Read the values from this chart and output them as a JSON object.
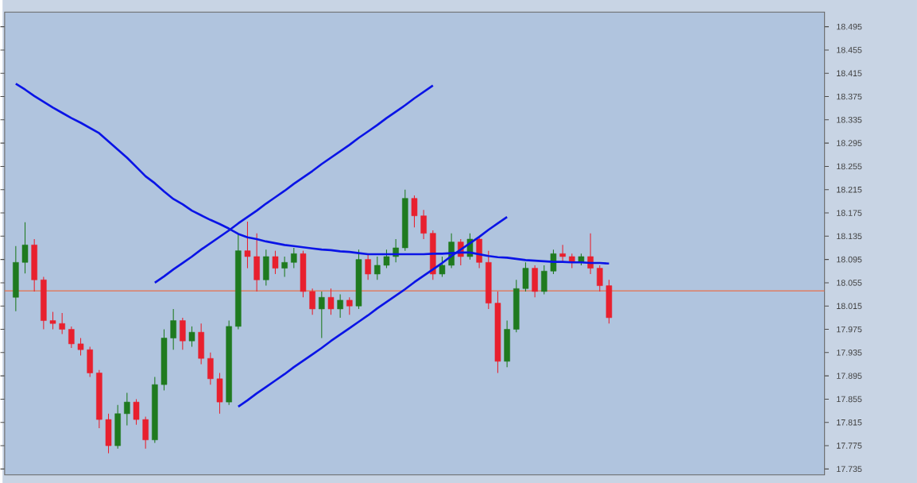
{
  "chart_data": {
    "type": "candlestick",
    "categories": [
      null,
      null,
      null,
      null,
      null,
      null,
      null,
      null,
      null,
      null,
      null,
      null,
      null,
      null,
      null,
      null,
      null,
      null,
      null,
      null,
      null,
      null,
      null,
      null,
      null,
      null,
      null,
      null,
      null,
      null,
      null,
      null,
      null,
      null,
      null,
      null,
      null,
      null,
      null,
      null,
      null,
      null,
      null,
      null,
      null,
      null,
      null,
      null,
      null,
      null,
      null,
      null,
      null,
      null,
      null,
      null,
      null,
      null,
      null,
      null,
      null,
      null,
      null,
      null,
      null
    ],
    "ohlc": [
      [
        18.03,
        18.118,
        18.006,
        18.09
      ],
      [
        18.09,
        18.159,
        18.071,
        18.12
      ],
      [
        18.12,
        18.13,
        18.04,
        18.06
      ],
      [
        18.06,
        18.065,
        17.975,
        17.99
      ],
      [
        17.99,
        18.005,
        17.975,
        17.985
      ],
      [
        17.985,
        18.003,
        17.967,
        17.975
      ],
      [
        17.975,
        17.98,
        17.943,
        17.95
      ],
      [
        17.95,
        17.96,
        17.93,
        17.94
      ],
      [
        17.94,
        17.945,
        17.893,
        17.9
      ],
      [
        17.9,
        17.905,
        17.805,
        17.82
      ],
      [
        17.82,
        17.83,
        17.762,
        17.775
      ],
      [
        17.775,
        17.845,
        17.77,
        17.83
      ],
      [
        17.83,
        17.866,
        17.81,
        17.85
      ],
      [
        17.85,
        17.855,
        17.811,
        17.82
      ],
      [
        17.82,
        17.825,
        17.77,
        17.785
      ],
      [
        17.785,
        17.893,
        17.78,
        17.88
      ],
      [
        17.88,
        17.975,
        17.87,
        17.96
      ],
      [
        17.96,
        18.01,
        17.94,
        17.99
      ],
      [
        17.99,
        17.995,
        17.94,
        17.955
      ],
      [
        17.955,
        17.98,
        17.945,
        17.97
      ],
      [
        17.97,
        17.985,
        17.915,
        17.925
      ],
      [
        17.925,
        17.935,
        17.88,
        17.89
      ],
      [
        17.89,
        17.9,
        17.83,
        17.85
      ],
      [
        17.85,
        17.99,
        17.845,
        17.98
      ],
      [
        17.98,
        18.14,
        17.975,
        18.11
      ],
      [
        18.11,
        18.16,
        18.08,
        18.1
      ],
      [
        18.1,
        18.14,
        18.04,
        18.06
      ],
      [
        18.06,
        18.112,
        18.05,
        18.1
      ],
      [
        18.1,
        18.11,
        18.07,
        18.08
      ],
      [
        18.08,
        18.1,
        18.065,
        18.09
      ],
      [
        18.09,
        18.115,
        18.08,
        18.105
      ],
      [
        18.105,
        18.11,
        18.03,
        18.04
      ],
      [
        18.04,
        18.045,
        18.0,
        18.01
      ],
      [
        18.01,
        18.04,
        17.96,
        18.03
      ],
      [
        18.03,
        18.045,
        18.0,
        18.01
      ],
      [
        18.01,
        18.035,
        17.995,
        18.025
      ],
      [
        18.025,
        18.03,
        18.0,
        18.015
      ],
      [
        18.015,
        18.112,
        18.01,
        18.095
      ],
      [
        18.095,
        18.105,
        18.06,
        18.07
      ],
      [
        18.07,
        18.1,
        18.06,
        18.085
      ],
      [
        18.085,
        18.112,
        18.08,
        18.1
      ],
      [
        18.1,
        18.13,
        18.09,
        18.115
      ],
      [
        18.115,
        18.215,
        18.11,
        18.2
      ],
      [
        18.2,
        18.205,
        18.15,
        18.17
      ],
      [
        18.17,
        18.18,
        18.13,
        18.14
      ],
      [
        18.14,
        18.145,
        18.06,
        18.07
      ],
      [
        18.07,
        18.1,
        18.065,
        18.085
      ],
      [
        18.085,
        18.14,
        18.08,
        18.125
      ],
      [
        18.125,
        18.13,
        18.085,
        18.1
      ],
      [
        18.1,
        18.14,
        18.095,
        18.13
      ],
      [
        18.13,
        18.135,
        18.08,
        18.09
      ],
      [
        18.09,
        18.11,
        18.01,
        18.02
      ],
      [
        18.02,
        18.04,
        17.9,
        17.92
      ],
      [
        17.92,
        17.99,
        17.91,
        17.975
      ],
      [
        17.975,
        18.06,
        17.97,
        18.045
      ],
      [
        18.045,
        18.09,
        18.04,
        18.08
      ],
      [
        18.08,
        18.085,
        18.03,
        18.04
      ],
      [
        18.04,
        18.085,
        18.035,
        18.075
      ],
      [
        18.075,
        18.112,
        18.07,
        18.105
      ],
      [
        18.105,
        18.12,
        18.09,
        18.1
      ],
      [
        18.1,
        18.105,
        18.08,
        18.09
      ],
      [
        18.09,
        18.105,
        18.085,
        18.1
      ],
      [
        18.1,
        18.14,
        18.07,
        18.08
      ],
      [
        18.08,
        18.085,
        18.04,
        18.05
      ],
      [
        18.05,
        18.06,
        17.985,
        17.995
      ]
    ],
    "series": [
      {
        "type": "line",
        "color": "#0a14e6",
        "values": [
          18.397,
          18.387,
          18.376,
          18.366,
          18.356,
          18.347,
          18.338,
          18.33,
          18.321,
          18.312,
          18.298,
          18.284,
          18.27,
          18.254,
          18.238,
          18.226,
          18.212,
          18.199,
          18.19,
          18.179,
          18.171,
          18.163,
          18.156,
          18.148,
          18.139,
          18.133,
          18.13,
          18.126,
          18.123,
          18.12,
          18.118,
          18.116,
          18.114,
          18.112,
          18.111,
          18.109,
          18.108,
          18.106,
          18.104,
          18.104,
          18.104,
          18.104,
          18.104,
          18.104,
          18.104,
          18.105,
          18.105,
          18.106,
          18.107,
          18.107,
          18.104,
          18.101,
          18.099,
          18.098,
          18.096,
          18.094,
          18.093,
          18.092,
          18.091,
          18.091,
          18.09,
          18.09,
          18.089,
          18.089,
          18.088
        ]
      },
      {
        "type": "line",
        "color": "#0a14e6",
        "values": [
          null,
          null,
          null,
          null,
          null,
          null,
          null,
          null,
          null,
          null,
          null,
          null,
          null,
          null,
          null,
          18.055,
          18.066,
          18.078,
          18.089,
          18.1,
          18.112,
          18.123,
          18.134,
          18.145,
          18.157,
          18.168,
          18.179,
          18.191,
          18.202,
          18.213,
          18.225,
          18.236,
          18.247,
          18.259,
          18.27,
          18.281,
          18.292,
          18.304,
          18.315,
          18.326,
          18.338,
          18.349,
          18.36,
          18.372,
          18.383,
          18.394,
          null,
          null,
          null,
          null,
          null,
          null,
          null,
          null,
          null,
          null,
          null,
          null,
          null,
          null,
          null,
          null,
          null,
          null,
          null
        ]
      },
      {
        "type": "line",
        "color": "#0a14e6",
        "values": [
          null,
          null,
          null,
          null,
          null,
          null,
          null,
          null,
          null,
          null,
          null,
          null,
          null,
          null,
          null,
          null,
          null,
          null,
          null,
          null,
          null,
          null,
          null,
          null,
          17.842,
          17.853,
          17.865,
          17.876,
          17.887,
          17.898,
          17.91,
          17.921,
          17.932,
          17.943,
          17.955,
          17.966,
          17.977,
          17.988,
          17.999,
          18.011,
          18.022,
          18.033,
          18.044,
          18.056,
          18.067,
          18.078,
          18.089,
          18.101,
          18.112,
          18.123,
          18.134,
          18.146,
          18.157,
          18.168,
          null,
          null,
          null,
          null,
          null,
          null,
          null,
          null,
          null,
          null,
          null
        ]
      }
    ],
    "ref_lines": [
      {
        "axis": "y",
        "value": 18.041,
        "color": "#e8704a"
      }
    ],
    "ylim": [
      17.725,
      18.52
    ],
    "yticks": [
      17.735,
      17.775,
      17.815,
      17.855,
      17.895,
      17.935,
      17.975,
      18.015,
      18.055,
      18.095,
      18.135,
      18.175,
      18.215,
      18.255,
      18.295,
      18.335,
      18.375,
      18.415,
      18.455,
      18.495
    ],
    "tick_labels": "y"
  }
}
